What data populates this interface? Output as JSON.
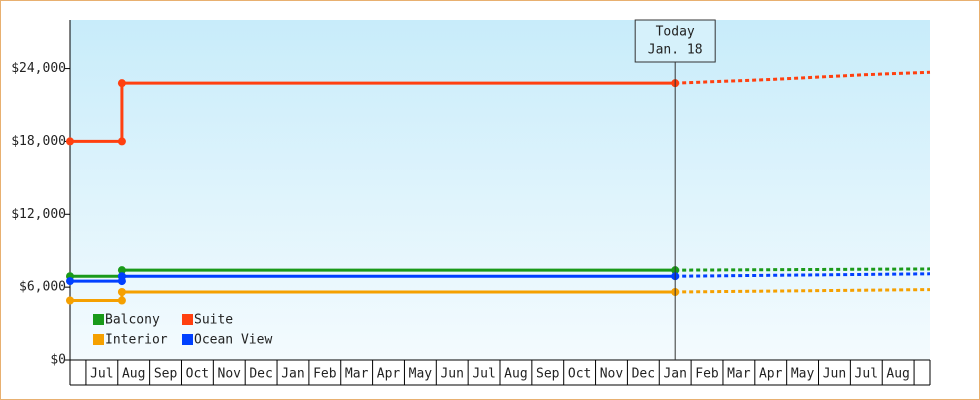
{
  "chart_data": {
    "type": "step-line",
    "xlim": [
      0,
      27
    ],
    "ylim": [
      0,
      28000
    ],
    "yticks": [
      {
        "value": 0,
        "label": "$0"
      },
      {
        "value": 6000,
        "label": "$6,000"
      },
      {
        "value": 12000,
        "label": "$12,000"
      },
      {
        "value": 18000,
        "label": "$18,000"
      },
      {
        "value": 24000,
        "label": "$24,000"
      }
    ],
    "xticks": [
      {
        "value": 1,
        "label": "Jul"
      },
      {
        "value": 2,
        "label": "Aug"
      },
      {
        "value": 3,
        "label": "Sep"
      },
      {
        "value": 4,
        "label": "Oct"
      },
      {
        "value": 5,
        "label": "Nov"
      },
      {
        "value": 6,
        "label": "Dec"
      },
      {
        "value": 7,
        "label": "Jan"
      },
      {
        "value": 8,
        "label": "Feb"
      },
      {
        "value": 9,
        "label": "Mar"
      },
      {
        "value": 10,
        "label": "Apr"
      },
      {
        "value": 11,
        "label": "May"
      },
      {
        "value": 12,
        "label": "Jun"
      },
      {
        "value": 13,
        "label": "Jul"
      },
      {
        "value": 14,
        "label": "Aug"
      },
      {
        "value": 15,
        "label": "Sep"
      },
      {
        "value": 16,
        "label": "Oct"
      },
      {
        "value": 17,
        "label": "Nov"
      },
      {
        "value": 18,
        "label": "Dec"
      },
      {
        "value": 19,
        "label": "Jan"
      },
      {
        "value": 20,
        "label": "Feb"
      },
      {
        "value": 21,
        "label": "Mar"
      },
      {
        "value": 22,
        "label": "Apr"
      },
      {
        "value": 23,
        "label": "May"
      },
      {
        "value": 24,
        "label": "Jun"
      },
      {
        "value": 25,
        "label": "Jul"
      },
      {
        "value": 26,
        "label": "Aug"
      }
    ],
    "annotation": {
      "x": 19,
      "lines": [
        "Today",
        "Jan. 18"
      ]
    },
    "series": [
      {
        "name": "Balcony",
        "color": "#1a9a1a",
        "x": [
          0,
          1.63,
          1.63,
          19
        ],
        "values": [
          6900,
          6900,
          7400,
          7400
        ],
        "forecast": {
          "x": [
            19,
            27
          ],
          "values": [
            7400,
            7500
          ]
        }
      },
      {
        "name": "Suite",
        "color": "#ff4010",
        "x": [
          0,
          1.63,
          1.63,
          19
        ],
        "values": [
          18000,
          18000,
          22800,
          22800
        ],
        "forecast": {
          "x": [
            19,
            22,
            25,
            27
          ],
          "values": [
            22800,
            23100,
            23500,
            23700
          ]
        }
      },
      {
        "name": "Interior",
        "color": "#f5a000",
        "x": [
          0,
          1.63,
          1.63,
          19
        ],
        "values": [
          4900,
          4900,
          5600,
          5600
        ],
        "forecast": {
          "x": [
            19,
            27
          ],
          "values": [
            5600,
            5800
          ]
        }
      },
      {
        "name": "Ocean View",
        "color": "#0040ff",
        "x": [
          0,
          1.63,
          1.63,
          19
        ],
        "values": [
          6500,
          6500,
          6900,
          6900
        ],
        "forecast": {
          "x": [
            19,
            27
          ],
          "values": [
            6900,
            7100
          ]
        }
      }
    ]
  }
}
